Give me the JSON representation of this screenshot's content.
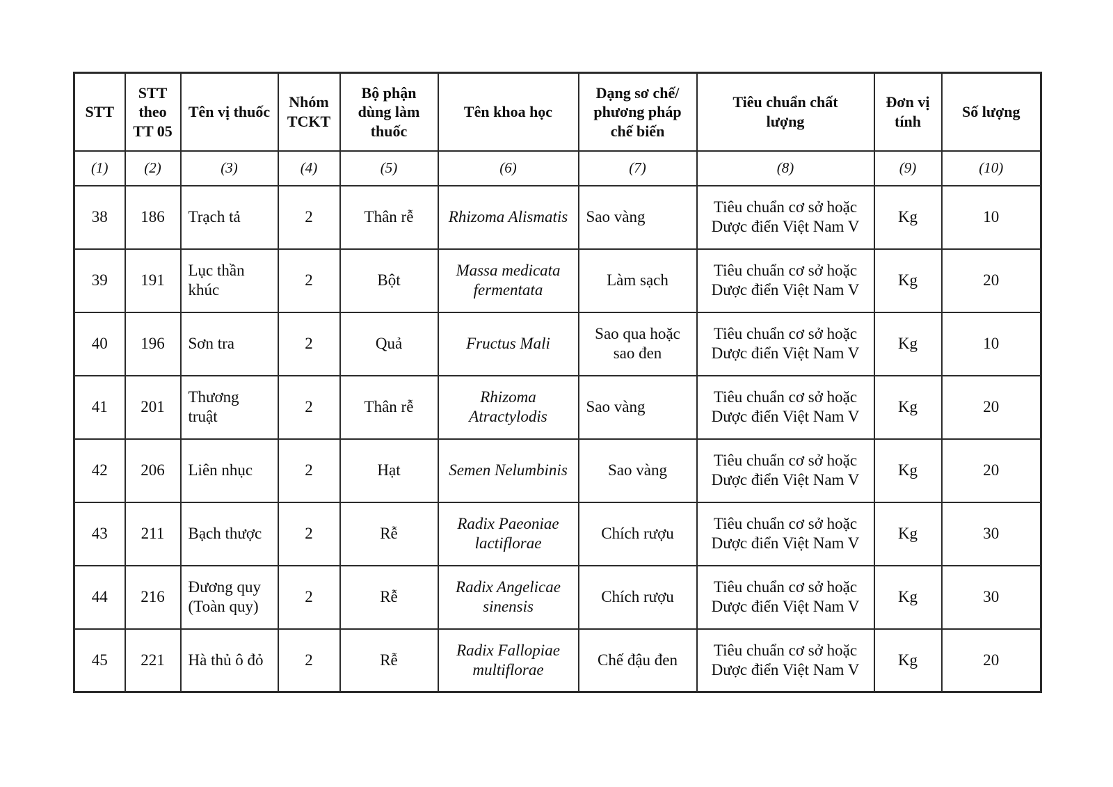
{
  "page": {
    "background_color": "#ffffff",
    "border_color": "#2b2b2b"
  },
  "table": {
    "headers": [
      "STT",
      "STT theo TT 05",
      "Tên vị thuốc",
      "Nhóm TCKT",
      "Bộ phận dùng làm thuốc",
      "Tên khoa học",
      "Dạng sơ chế/ phương pháp chế biến",
      "Tiêu chuẩn chất lượng",
      "Đơn vị tính",
      "Số lượng"
    ],
    "ordinals": [
      "(1)",
      "(2)",
      "(3)",
      "(4)",
      "(5)",
      "(6)",
      "(7)",
      "(8)",
      "(9)",
      "(10)"
    ],
    "rows": [
      {
        "stt": "38",
        "stt_theo_tt05": "186",
        "ten_vi_thuoc": "Trạch tả",
        "nhom_tckt": "2",
        "bo_phan": "Thân rễ",
        "ten_khoa_hoc": "Rhizoma Alismatis",
        "so_che": "Sao vàng",
        "so_che_align": "left",
        "tieu_chuan": "Tiêu chuẩn cơ sở hoặc Dược điển Việt Nam V",
        "don_vi": "Kg",
        "so_luong": "10"
      },
      {
        "stt": "39",
        "stt_theo_tt05": "191",
        "ten_vi_thuoc": "Lục thần khúc",
        "nhom_tckt": "2",
        "bo_phan": "Bột",
        "ten_khoa_hoc": "Massa medicata fermentata",
        "so_che": "Làm sạch",
        "so_che_align": "center",
        "tieu_chuan": "Tiêu chuẩn cơ sở hoặc Dược điển Việt Nam V",
        "don_vi": "Kg",
        "so_luong": "20"
      },
      {
        "stt": "40",
        "stt_theo_tt05": "196",
        "ten_vi_thuoc": "Sơn tra",
        "nhom_tckt": "2",
        "bo_phan": "Quả",
        "ten_khoa_hoc": "Fructus Mali",
        "so_che": "Sao qua hoặc sao đen",
        "so_che_align": "center",
        "tieu_chuan": "Tiêu chuẩn cơ sở hoặc Dược điển Việt Nam V",
        "don_vi": "Kg",
        "so_luong": "10"
      },
      {
        "stt": "41",
        "stt_theo_tt05": "201",
        "ten_vi_thuoc": "Thương truật",
        "nhom_tckt": "2",
        "bo_phan": "Thân rễ",
        "ten_khoa_hoc": "Rhizoma Atractylodis",
        "so_che": "Sao vàng",
        "so_che_align": "left",
        "tieu_chuan": "Tiêu chuẩn cơ sở hoặc Dược điển Việt Nam V",
        "don_vi": "Kg",
        "so_luong": "20"
      },
      {
        "stt": "42",
        "stt_theo_tt05": "206",
        "ten_vi_thuoc": "Liên nhục",
        "nhom_tckt": "2",
        "bo_phan": "Hạt",
        "ten_khoa_hoc": "Semen Nelumbinis",
        "so_che": "Sao vàng",
        "so_che_align": "center",
        "tieu_chuan": "Tiêu chuẩn cơ sở hoặc Dược điển Việt Nam V",
        "don_vi": "Kg",
        "so_luong": "20"
      },
      {
        "stt": "43",
        "stt_theo_tt05": "211",
        "ten_vi_thuoc": "Bạch thược",
        "nhom_tckt": "2",
        "bo_phan": "Rễ",
        "ten_khoa_hoc": "Radix Paeoniae lactiflorae",
        "so_che": "Chích rượu",
        "so_che_align": "center",
        "tieu_chuan": "Tiêu chuẩn cơ sở hoặc Dược điển Việt Nam V",
        "don_vi": "Kg",
        "so_luong": "30"
      },
      {
        "stt": "44",
        "stt_theo_tt05": "216",
        "ten_vi_thuoc": "Đương quy (Toàn quy)",
        "nhom_tckt": "2",
        "bo_phan": "Rễ",
        "ten_khoa_hoc": "Radix Angelicae sinensis",
        "so_che": "Chích rượu",
        "so_che_align": "center",
        "tieu_chuan": "Tiêu chuẩn cơ sở hoặc Dược điển Việt Nam V",
        "don_vi": "Kg",
        "so_luong": "30"
      },
      {
        "stt": "45",
        "stt_theo_tt05": "221",
        "ten_vi_thuoc": "Hà thủ ô đỏ",
        "nhom_tckt": "2",
        "bo_phan": "Rễ",
        "ten_khoa_hoc": "Radix Fallopiae multiflorae",
        "so_che": "Chế đậu đen",
        "so_che_align": "center",
        "tieu_chuan": "Tiêu chuẩn cơ sở hoặc Dược điển Việt Nam V",
        "don_vi": "Kg",
        "so_luong": "20"
      }
    ]
  }
}
